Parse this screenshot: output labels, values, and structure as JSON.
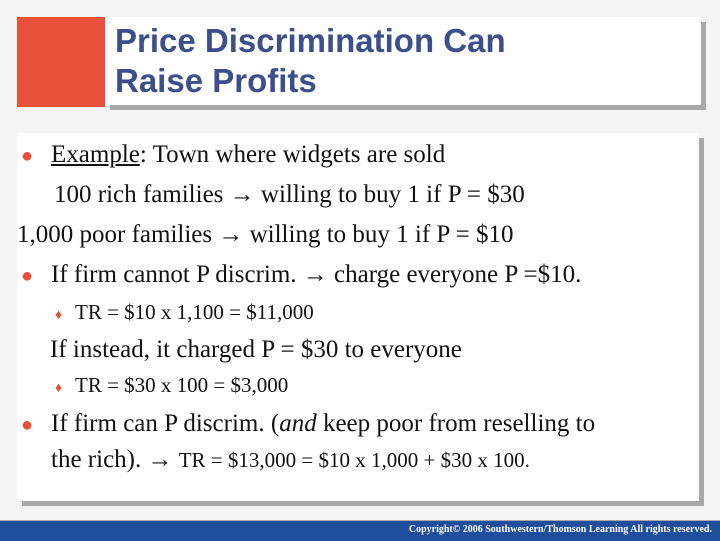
{
  "slide": {
    "title_line1": "Price Discrimination Can",
    "title_line2": "Raise Profits",
    "bullet_char": "●",
    "sub_bullet_char": "♦",
    "example_label": "Example",
    "example_rest": ": Town where widgets are sold",
    "rich_line": "100 rich families → willing to buy 1 if P = $30",
    "poor_line": "1,000 poor families → willing to buy 1 if P = $10",
    "cannot_line": "If firm cannot P discrim. → charge everyone P =$10.",
    "tr_10": "TR = $10 x 1,100 = $11,000",
    "instead_line": "If instead, it charged P = $30 to everyone",
    "tr_30": "TR = $30 x 100 = $3,000",
    "can_part1": "If firm can P discrim. (",
    "can_and": "and",
    "can_part2": " keep poor from reselling to",
    "rich_part1": "the rich). → ",
    "rich_part2": "TR = $13,000 = $10 x 1,000 + $30 x 100."
  },
  "footer": {
    "copyright": "Copyright© 2006 Southwestern/Thomson Learning All rights reserved."
  }
}
